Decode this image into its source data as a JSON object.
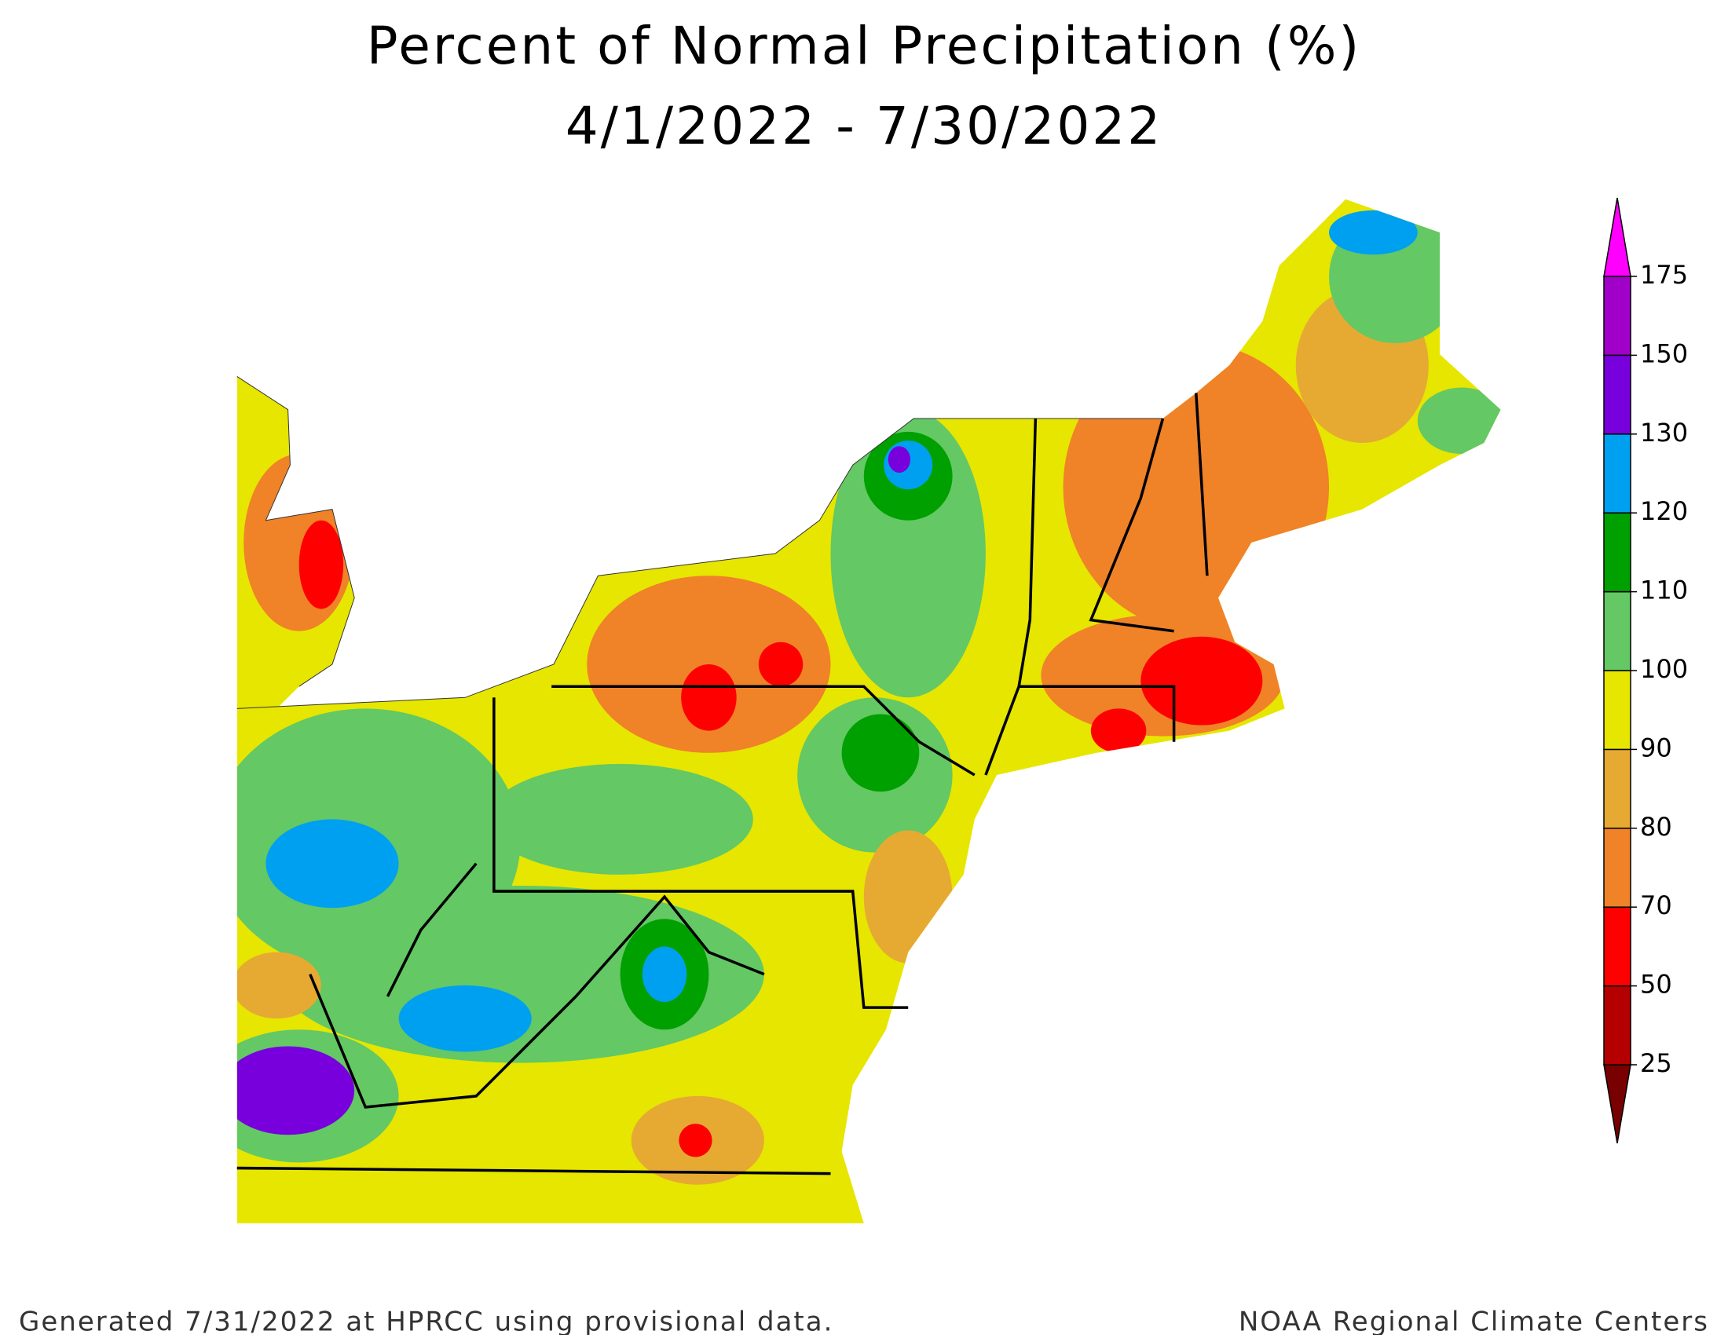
{
  "header": {
    "title": "Percent of Normal Precipitation (%)",
    "subtitle": "4/1/2022 - 7/30/2022"
  },
  "legend": {
    "ticks": [
      25,
      50,
      70,
      80,
      90,
      100,
      110,
      120,
      130,
      150,
      175
    ],
    "colors": [
      "#780000",
      "#b40000",
      "#ff0000",
      "#f08228",
      "#e6aa32",
      "#e6e600",
      "#64c864",
      "#00a000",
      "#00a0f0",
      "#7800dc",
      "#a000c8",
      "#ff00ff"
    ]
  },
  "footer": {
    "left": "Generated 7/31/2022 at HPRCC using provisional data.",
    "right": "NOAA Regional Climate Centers"
  }
}
